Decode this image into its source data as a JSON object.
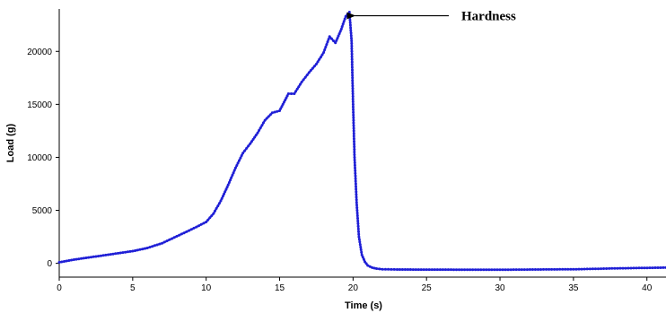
{
  "chart_data": {
    "type": "line",
    "title": "",
    "xlabel": "Time (s)",
    "ylabel": "Load (g)",
    "xlim": [
      0,
      41.3
    ],
    "ylim": [
      -1300,
      24000
    ],
    "x_ticks": [
      0,
      5,
      10,
      15,
      20,
      25,
      30,
      35,
      40
    ],
    "y_ticks": [
      0,
      5000,
      10000,
      15000,
      20000
    ],
    "grid": false,
    "series": [
      {
        "name": "",
        "color": "#1f1fd6",
        "marker": "dot",
        "x": [
          0,
          1,
          2,
          3,
          4,
          5,
          6,
          7,
          8,
          9,
          10,
          10.5,
          11,
          11.5,
          12,
          12.5,
          13,
          13.5,
          14,
          14.5,
          15,
          15.3,
          15.6,
          16,
          16.5,
          17,
          17.5,
          18,
          18.4,
          18.8,
          19.2,
          19.5,
          19.75,
          19.9,
          20.0,
          20.1,
          20.25,
          20.4,
          20.6,
          20.8,
          21.0,
          21.3,
          21.6,
          22,
          23,
          25,
          30,
          35,
          38,
          41.3
        ],
        "y": [
          100,
          350,
          550,
          750,
          950,
          1150,
          1450,
          1900,
          2550,
          3200,
          3900,
          4700,
          5900,
          7400,
          9000,
          10400,
          11300,
          12300,
          13500,
          14200,
          14400,
          15200,
          16000,
          16000,
          17100,
          18000,
          18800,
          19900,
          21400,
          20800,
          22100,
          23300,
          23700,
          21000,
          15000,
          10000,
          5500,
          2500,
          800,
          150,
          -200,
          -400,
          -500,
          -560,
          -580,
          -590,
          -600,
          -560,
          -470,
          -400
        ]
      }
    ],
    "annotations": [
      {
        "text": "Hardness",
        "points_to": {
          "x": 19.75,
          "y": 23700
        },
        "arrow": true
      }
    ]
  }
}
